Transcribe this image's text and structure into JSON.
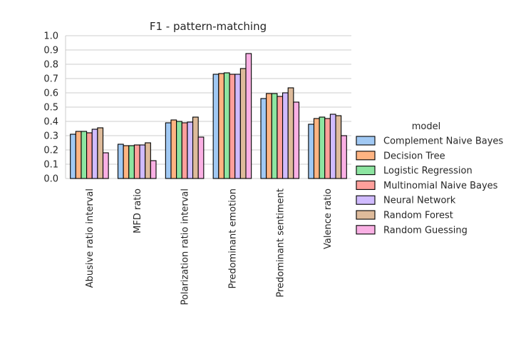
{
  "chart_data": {
    "type": "bar",
    "title": "F1 - pattern-matching",
    "xlabel": "",
    "ylabel": "",
    "ylim": [
      0,
      1.0
    ],
    "yticks": [
      "0.0",
      "0.1",
      "0.2",
      "0.3",
      "0.4",
      "0.5",
      "0.6",
      "0.7",
      "0.8",
      "0.9",
      "1.0"
    ],
    "grid": "horizontal",
    "legend_title": "model",
    "legend_position": "right",
    "categories": [
      "Abusive ratio interval",
      "MFD ratio",
      "Polarization ratio interval",
      "Predominant emotion",
      "Predominant sentiment",
      "Valence ratio"
    ],
    "series": [
      {
        "name": "Complement Naive Bayes",
        "color": "#a1c9f4",
        "values": [
          0.31,
          0.24,
          0.39,
          0.73,
          0.56,
          0.38
        ]
      },
      {
        "name": "Decision Tree",
        "color": "#ffb482",
        "values": [
          0.33,
          0.23,
          0.41,
          0.735,
          0.595,
          0.42
        ]
      },
      {
        "name": "Logistic Regression",
        "color": "#8de5a1",
        "values": [
          0.33,
          0.23,
          0.4,
          0.74,
          0.595,
          0.43
        ]
      },
      {
        "name": "Multinomial Naive Bayes",
        "color": "#ff9f9b",
        "values": [
          0.32,
          0.235,
          0.39,
          0.73,
          0.575,
          0.42
        ]
      },
      {
        "name": "Neural Network",
        "color": "#d0bbff",
        "values": [
          0.345,
          0.235,
          0.395,
          0.73,
          0.6,
          0.45
        ]
      },
      {
        "name": "Random Forest",
        "color": "#debb9b",
        "values": [
          0.355,
          0.25,
          0.43,
          0.77,
          0.635,
          0.44
        ]
      },
      {
        "name": "Random Guessing",
        "color": "#fab0e4",
        "values": [
          0.18,
          0.125,
          0.29,
          0.875,
          0.535,
          0.3
        ]
      }
    ]
  }
}
